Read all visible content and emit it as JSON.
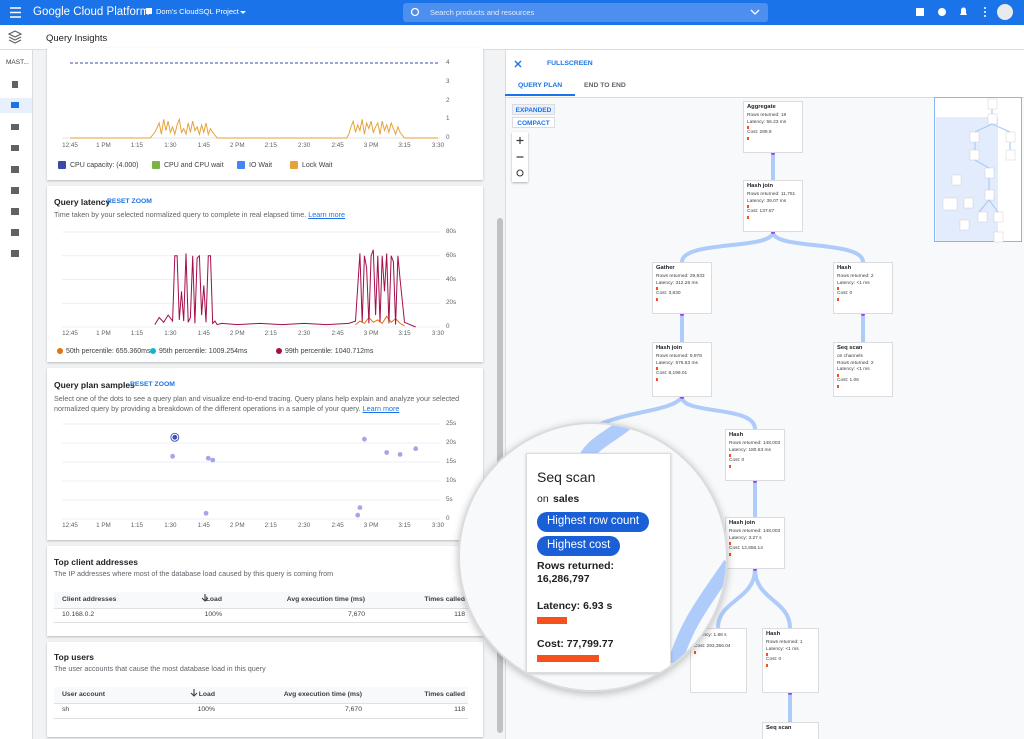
{
  "topbar": {
    "product": "Google Cloud Platform",
    "project": "Dom's CloudSQL Project",
    "search_placeholder": "Search products and resources"
  },
  "nav": {
    "instance": "MAST..."
  },
  "page_title": "Query Insights",
  "load_chart": {
    "type": "line",
    "xlim": [
      0,
      165
    ],
    "xticks": [
      {
        "value": 0,
        "label": "12:45"
      },
      {
        "value": 15,
        "label": "1 PM"
      },
      {
        "value": 30,
        "label": "1:15"
      },
      {
        "value": 45,
        "label": "1:30"
      },
      {
        "value": 60,
        "label": "1:45"
      },
      {
        "value": 75,
        "label": "2 PM"
      },
      {
        "value": 90,
        "label": "2:15"
      },
      {
        "value": 105,
        "label": "2:30"
      },
      {
        "value": 120,
        "label": "2:45"
      },
      {
        "value": 135,
        "label": "3 PM"
      },
      {
        "value": 150,
        "label": "3:15"
      },
      {
        "value": 165,
        "label": "3:30"
      }
    ],
    "ylim": [
      0,
      4
    ],
    "yticks": [
      0,
      1,
      2,
      3,
      4
    ],
    "grid": false,
    "series": [
      {
        "name": "CPU capacity: (4.000)",
        "color": "#3b4ba8",
        "dashed": true,
        "x": [
          0,
          165
        ],
        "values": [
          4,
          4
        ]
      },
      {
        "name": "CPU and CPU wait",
        "color": "#7cb342"
      },
      {
        "name": "IO Wait",
        "color": "#4285f4"
      },
      {
        "name": "Lock Wait",
        "color": "#e6a23c",
        "x": [
          0,
          36,
          38,
          40,
          41,
          42,
          43,
          44,
          45,
          46,
          47,
          48,
          49,
          50,
          51,
          52,
          53,
          54,
          55,
          56,
          57,
          58,
          59,
          60,
          61,
          62,
          63,
          64,
          66,
          124,
          125,
          126,
          127,
          128,
          129,
          130,
          131,
          132,
          133,
          134,
          135,
          136,
          137,
          138,
          139,
          140,
          141,
          142,
          143,
          144,
          145,
          146,
          147,
          148,
          150,
          165
        ],
        "values": [
          0,
          0,
          0.3,
          0.8,
          0.2,
          1.0,
          0.4,
          0.9,
          0.3,
          0.6,
          0.2,
          0.7,
          1.0,
          0.3,
          0.5,
          0.2,
          0.8,
          0.3,
          0.9,
          0.4,
          0.6,
          0.2,
          0.7,
          0.3,
          0.8,
          0.2,
          0.5,
          0.3,
          0,
          0,
          0.2,
          0.6,
          0.9,
          0.3,
          0.7,
          0.4,
          1.0,
          0.2,
          0.8,
          0.5,
          0.9,
          0.3,
          0.6,
          0.8,
          0.2,
          0.9,
          0.4,
          0.7,
          0.3,
          0.8,
          0.5,
          0.2,
          0.6,
          0.3,
          0,
          0
        ]
      }
    ]
  },
  "latency_chart": {
    "type": "line",
    "title": "Query latency",
    "reset": "RESET ZOOM",
    "description": "Time taken by your selected normalized query to complete in real elapsed time.",
    "link": "Learn more",
    "xlim": [
      0,
      165
    ],
    "xticks": [
      {
        "value": 0,
        "label": "12:45"
      },
      {
        "value": 15,
        "label": "1 PM"
      },
      {
        "value": 30,
        "label": "1:15"
      },
      {
        "value": 45,
        "label": "1:30"
      },
      {
        "value": 60,
        "label": "1:45"
      },
      {
        "value": 75,
        "label": "2 PM"
      },
      {
        "value": 90,
        "label": "2:15"
      },
      {
        "value": 105,
        "label": "2:30"
      },
      {
        "value": 120,
        "label": "2:45"
      },
      {
        "value": 135,
        "label": "3 PM"
      },
      {
        "value": 150,
        "label": "3:15"
      },
      {
        "value": 165,
        "label": "3:30"
      }
    ],
    "ylim": [
      0,
      80
    ],
    "yticks": [
      0,
      {
        "value": 20,
        "label": "20s"
      },
      {
        "value": 40,
        "label": "40s"
      },
      {
        "value": 60,
        "label": "60s"
      },
      {
        "value": 80,
        "label": "80s"
      }
    ],
    "grid": true,
    "series": [
      {
        "name": "50th percentile: 655.360ms",
        "color": "#e8710a",
        "x": [
          128,
          130,
          132,
          134,
          136,
          138,
          140,
          142,
          144,
          146,
          148,
          150
        ],
        "values": [
          2,
          5,
          3,
          8,
          4,
          6,
          3,
          9,
          4,
          7,
          3,
          1
        ]
      },
      {
        "name": "95th percentile: 1009.254ms",
        "color": "#12b5cb"
      },
      {
        "name": "99th percentile: 1040.712ms",
        "color": "#a50e4b",
        "x": [
          38,
          40,
          42,
          44,
          46,
          47,
          48,
          49,
          50,
          51,
          52,
          53,
          54,
          55,
          56,
          57,
          58,
          59,
          60,
          61,
          62,
          63,
          64,
          65,
          66,
          68,
          75,
          85,
          95,
          105,
          115,
          125,
          128,
          130,
          131,
          132,
          133,
          134,
          135,
          136,
          137,
          138,
          139,
          140,
          141,
          142,
          143,
          144,
          145,
          146,
          147,
          148,
          150,
          155
        ],
        "values": [
          2,
          8,
          4,
          10,
          5,
          60,
          60,
          6,
          30,
          5,
          62,
          4,
          8,
          60,
          3,
          58,
          60,
          10,
          35,
          4,
          60,
          60,
          3,
          5,
          2,
          3,
          2,
          3,
          2,
          3,
          2,
          3,
          5,
          62,
          4,
          60,
          50,
          3,
          60,
          65,
          10,
          60,
          4,
          60,
          30,
          62,
          3,
          60,
          55,
          2,
          60,
          40,
          4,
          0
        ]
      }
    ]
  },
  "samples_chart": {
    "type": "scatter",
    "title": "Query plan samples",
    "reset": "RESET ZOOM",
    "description": "Select one of the dots to see a query plan and visualize end-to-end tracing. Query plans help explain and analyze your selected normalized query by providing a breakdown of the different operations in a sample of your query.",
    "link": "Learn more",
    "xlim": [
      0,
      165
    ],
    "xticks": [
      {
        "value": 0,
        "label": "12:45"
      },
      {
        "value": 15,
        "label": "1 PM"
      },
      {
        "value": 30,
        "label": "1:15"
      },
      {
        "value": 45,
        "label": "1:30"
      },
      {
        "value": 60,
        "label": "1:45"
      },
      {
        "value": 75,
        "label": "2 PM"
      },
      {
        "value": 90,
        "label": "2:15"
      },
      {
        "value": 105,
        "label": "2:30"
      },
      {
        "value": 120,
        "label": "2:45"
      },
      {
        "value": 135,
        "label": "3 PM"
      },
      {
        "value": 150,
        "label": "3:15"
      },
      {
        "value": 165,
        "label": "3:30"
      }
    ],
    "ylim": [
      0,
      25
    ],
    "yticks": [
      0,
      {
        "value": 5,
        "label": "5s"
      },
      {
        "value": 10,
        "label": "10s"
      },
      {
        "value": 15,
        "label": "15s"
      },
      {
        "value": 20,
        "label": "20s"
      },
      {
        "value": 25,
        "label": "25s"
      }
    ],
    "grid": true,
    "color": "#a7a4ec",
    "selected_color": "#3f51b5",
    "selected": 0,
    "x": [
      47,
      46,
      62,
      64,
      61,
      132,
      130,
      129,
      142,
      148,
      155
    ],
    "values": [
      21.5,
      16.5,
      16,
      15.5,
      1.5,
      21,
      3,
      1,
      17.5,
      17,
      18.5
    ]
  },
  "top_clients": {
    "title": "Top client addresses",
    "description": "The IP addresses where most of the database load caused by this query is coming from",
    "columns": [
      "Client addresses",
      "Load",
      "Avg execution time (ms)",
      "Times called"
    ],
    "rows": [
      [
        "10.168.0.2",
        "100%",
        "7,670",
        "118"
      ]
    ]
  },
  "top_users": {
    "title": "Top users",
    "description": "The user accounts that cause the most database load in this query",
    "columns": [
      "User account",
      "Load",
      "Avg execution time (ms)",
      "Times called"
    ],
    "rows": [
      [
        "sh",
        "100%",
        "7,670",
        "118"
      ]
    ]
  },
  "plan": {
    "fullscreen": "FULLSCREEN",
    "tabs": [
      "QUERY PLAN",
      "END TO END"
    ],
    "active_tab": 0,
    "views": [
      "EXPANDED",
      "COMPACT"
    ],
    "active_view": 0,
    "nodes": [
      {
        "title": "Aggregate",
        "lines": [
          "Rows returned: 19",
          "Latency: 56.23 ms",
          "Cost: 289.9"
        ]
      },
      {
        "title": "Hash join",
        "lines": [
          "Rows returned: 11,751",
          "Latency: 39.07 ms",
          "Cost: 137.67"
        ]
      },
      {
        "title": "Gather",
        "lines": [
          "Rows returned: 29,933",
          "Latency: 312.26 ms",
          "Cost: 3,830"
        ]
      },
      {
        "title": "Hash",
        "lines": [
          "Rows returned: 2",
          "Latency: <1 ms",
          "Cost: 0"
        ]
      },
      {
        "title": "Hash join",
        "lines": [
          "Rows returned: 9,978",
          "Latency: 576.63 ms",
          "Cost: 8,199.01"
        ]
      },
      {
        "title": "Seq scan",
        "subtitle": "on channels",
        "lines": [
          "Rows returned: 2",
          "Latency: <1 ms",
          "Cost: 1.06"
        ]
      },
      {
        "title": "Hash",
        "lines": [
          "Rows returned: 148,003",
          "Latency: 180.63 ms",
          "Cost: 0"
        ]
      },
      {
        "title": "Hash join",
        "lines": [
          "Rows returned: 148,003",
          "Latency: 3.27 s",
          "Cost: 12,656.14"
        ]
      },
      {
        "lines": [
          "Latency: 1.88 s",
          "Cost: 293,356.04"
        ]
      },
      {
        "title": "Hash",
        "lines": [
          "Rows returned: 1",
          "Latency: <1 ms",
          "Cost: 0"
        ]
      },
      {
        "title": "Seq scan",
        "lines": []
      }
    ],
    "detail": {
      "title": "Seq scan",
      "on": "on",
      "table": "sales",
      "badges": [
        "Highest row count",
        "Highest cost"
      ],
      "rows_label": "Rows returned:",
      "rows": "16,286,797",
      "latency": "Latency: 6.93 s",
      "cost": "Cost: 77,799.77"
    }
  }
}
